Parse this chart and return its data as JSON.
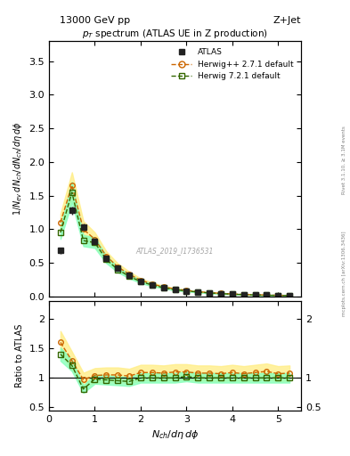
{
  "title_top": "13000 GeV pp",
  "title_right": "Z+Jet",
  "plot_title": "p_{T} spectrum (ATLAS UE in Z production)",
  "watermark": "ATLAS_2019_I1736531",
  "right_label": "mcplots.cern.ch [arXiv:1306.3436]",
  "right_label2": "Rivet 3.1.10, ≥ 3.1M events",
  "xlabel": "N_{ch}/dη dφ",
  "ylabel_main": "1/N_{ev} dN_{ch}/dN_{ch}/dη dφ",
  "ylabel_ratio": "Ratio to ATLAS",
  "xlim": [
    0,
    5.5
  ],
  "ylim_main": [
    0,
    3.8
  ],
  "ylim_ratio": [
    0.45,
    2.3
  ],
  "atlas_x": [
    0.25,
    0.5,
    0.75,
    1.0,
    1.25,
    1.5,
    1.75,
    2.0,
    2.25,
    2.5,
    2.75,
    3.0,
    3.25,
    3.5,
    3.75,
    4.0,
    4.25,
    4.5,
    4.75,
    5.0,
    5.25
  ],
  "atlas_y": [
    0.68,
    1.28,
    1.03,
    0.82,
    0.57,
    0.42,
    0.32,
    0.22,
    0.17,
    0.13,
    0.1,
    0.08,
    0.065,
    0.052,
    0.042,
    0.033,
    0.027,
    0.022,
    0.018,
    0.015,
    0.012
  ],
  "atlas_yerr": [
    0.04,
    0.06,
    0.05,
    0.04,
    0.03,
    0.02,
    0.015,
    0.012,
    0.01,
    0.008,
    0.006,
    0.005,
    0.004,
    0.003,
    0.003,
    0.002,
    0.002,
    0.002,
    0.001,
    0.001,
    0.001
  ],
  "herwig_pp_x": [
    0.25,
    0.5,
    0.75,
    1.0,
    1.25,
    1.5,
    1.75,
    2.0,
    2.25,
    2.5,
    2.75,
    3.0,
    3.25,
    3.5,
    3.75,
    4.0,
    4.25,
    4.5,
    4.75,
    5.0,
    5.25
  ],
  "herwig_pp_y": [
    1.1,
    1.65,
    1.0,
    0.85,
    0.6,
    0.44,
    0.33,
    0.24,
    0.185,
    0.14,
    0.11,
    0.088,
    0.07,
    0.056,
    0.045,
    0.036,
    0.029,
    0.024,
    0.02,
    0.016,
    0.013
  ],
  "herwig72_x": [
    0.25,
    0.5,
    0.75,
    1.0,
    1.25,
    1.5,
    1.75,
    2.0,
    2.25,
    2.5,
    2.75,
    3.0,
    3.25,
    3.5,
    3.75,
    4.0,
    4.25,
    4.5,
    4.75,
    5.0,
    5.25
  ],
  "herwig72_y": [
    0.95,
    1.55,
    0.83,
    0.8,
    0.55,
    0.4,
    0.3,
    0.22,
    0.17,
    0.13,
    0.1,
    0.082,
    0.065,
    0.052,
    0.042,
    0.033,
    0.027,
    0.022,
    0.018,
    0.015,
    0.012
  ],
  "ratio_herwig_pp_y": [
    1.6,
    1.29,
    0.97,
    1.04,
    1.05,
    1.05,
    1.03,
    1.09,
    1.09,
    1.08,
    1.1,
    1.1,
    1.08,
    1.08,
    1.07,
    1.09,
    1.07,
    1.09,
    1.11,
    1.07,
    1.08
  ],
  "ratio_herwig72_y": [
    1.4,
    1.21,
    0.81,
    0.98,
    0.965,
    0.952,
    0.938,
    1.0,
    1.0,
    1.0,
    1.0,
    1.025,
    1.0,
    1.0,
    1.0,
    1.0,
    1.0,
    1.0,
    1.0,
    1.0,
    1.0
  ],
  "color_atlas": "#222222",
  "color_herwig_pp": "#cc6600",
  "color_herwig72": "#336600",
  "color_herwig_pp_band": "#ffee88",
  "color_herwig72_band": "#88ffbb",
  "bg_color": "#ffffff"
}
